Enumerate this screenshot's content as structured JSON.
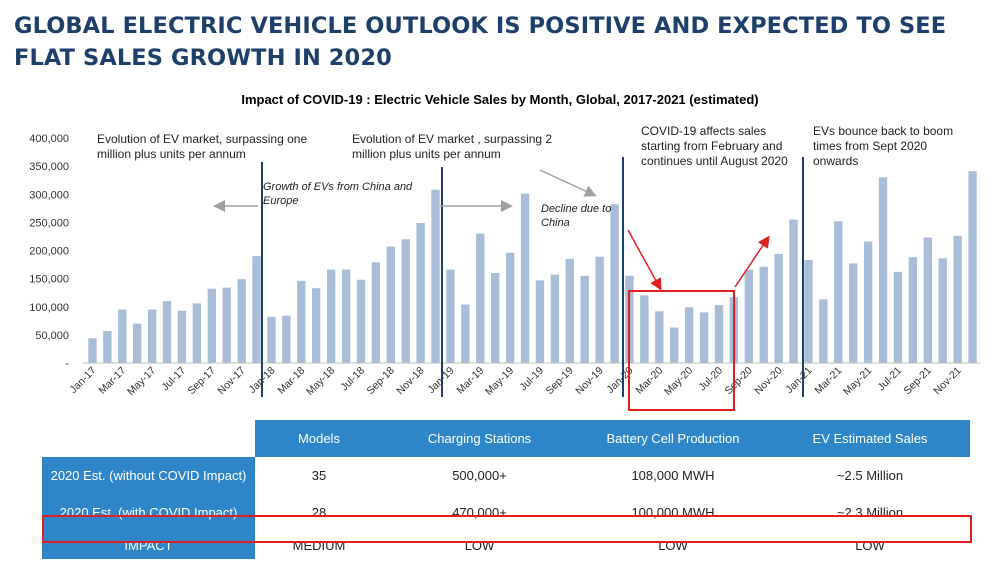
{
  "headline": "GLOBAL ELECTRIC VEHICLE OUTLOOK IS POSITIVE AND EXPECTED TO SEE FLAT SALES GROWTH  IN 2020",
  "chart_data": {
    "type": "bar",
    "title": "Impact of COVID-19 : Electric Vehicle Sales by Month, Global, 2017-2021 (estimated)",
    "ylim": [
      0,
      400000
    ],
    "y_ticks": [
      "-",
      "50,000",
      "100,000",
      "150,000",
      "200,000",
      "250,000",
      "300,000",
      "350,000",
      "400,000"
    ],
    "bar_color": "#a9bdd6",
    "x_tick_labels": [
      "Jan-17",
      "Mar-17",
      "May-17",
      "Jul-17",
      "Sep-17",
      "Nov-17",
      "Jan-18",
      "Mar-18",
      "May-18",
      "Jul-18",
      "Sep-18",
      "Nov-18",
      "Jan-19",
      "Mar-19",
      "May-19",
      "Jul-19",
      "Sep-19",
      "Nov-19",
      "Jan-20",
      "Mar-20",
      "May-20",
      "Jul-20",
      "Sep-20",
      "Nov-20",
      "Jan-21",
      "Mar-21",
      "May-21",
      "Jul-21",
      "Sep-21",
      "Nov-21"
    ],
    "values": [
      44000,
      57000,
      95000,
      70000,
      95000,
      110000,
      93000,
      106000,
      132000,
      134000,
      149000,
      190000,
      82000,
      84000,
      146000,
      133000,
      166000,
      166000,
      148000,
      179000,
      207000,
      220000,
      249000,
      308000,
      166000,
      104000,
      230000,
      160000,
      196000,
      301000,
      147000,
      157000,
      185000,
      155000,
      189000,
      282000,
      155000,
      120000,
      92000,
      63000,
      99000,
      90000,
      103000,
      117000,
      166000,
      171000,
      194000,
      255000,
      183000,
      113000,
      252000,
      177000,
      216000,
      330000,
      162000,
      188000,
      223000,
      186000,
      226000,
      341000
    ],
    "annotations": [
      "Evolution of EV market, surpassing one million plus units per annum",
      "Growth of EVs from China and Europe",
      "Evolution of EV market , surpassing 2 million plus units per annum",
      "Decline due to China",
      "COVID-19 affects sales starting from February and continues until August 2020",
      "EVs  bounce back to boom times from Sept 2020 onwards"
    ]
  },
  "table": {
    "headers": [
      "Models",
      "Charging Stations",
      "Battery Cell Production",
      "EV Estimated Sales"
    ],
    "rows": [
      {
        "label": "2020 Est. (without COVID Impact)",
        "cells": [
          "35",
          "500,000+",
          "108,000 MWH",
          "~2.5 Million"
        ]
      },
      {
        "label": "2020 Est. (with COVID Impact)",
        "cells": [
          "28",
          "470,000+",
          "100,000 MWH",
          "~2.3 Million"
        ]
      },
      {
        "label": "IMPACT",
        "cells": [
          "MEDIUM",
          "LOW",
          "LOW",
          "LOW"
        ]
      }
    ]
  },
  "colors": {
    "headline": "#1f3f6b",
    "table_header": "#2e86c8",
    "highlight": "#e02020",
    "divider": "#1f3f6b",
    "arrow": "#a0a0a0"
  }
}
